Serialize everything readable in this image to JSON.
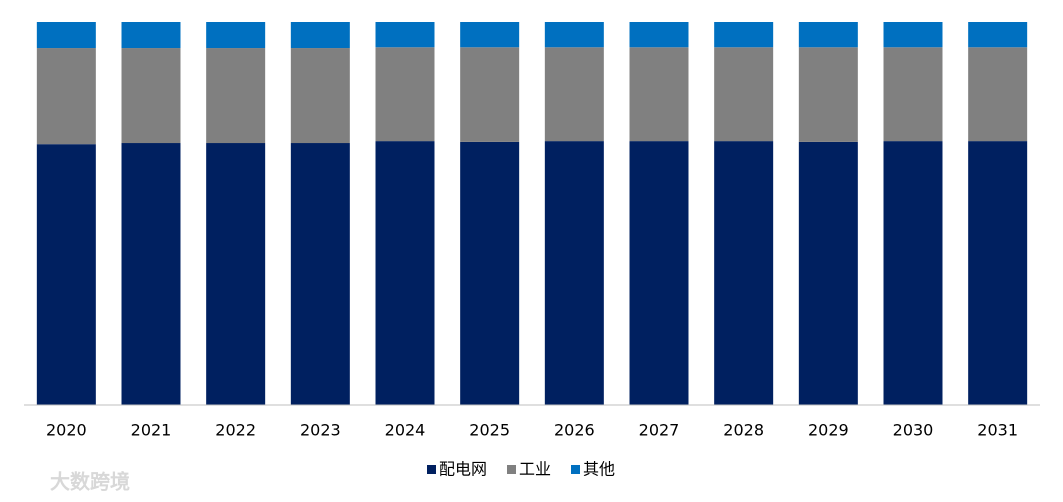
{
  "chart_data": {
    "type": "stacked-bar",
    "categories": [
      "2020",
      "2021",
      "2022",
      "2023",
      "2024",
      "2025",
      "2026",
      "2027",
      "2028",
      "2029",
      "2030",
      "2031"
    ],
    "series": [
      {
        "name": "配电网",
        "color": "#002060",
        "values": [
          68.1,
          68.4,
          68.4,
          68.4,
          68.9,
          68.7,
          68.9,
          68.9,
          68.9,
          68.7,
          68.9,
          68.9
        ]
      },
      {
        "name": "工业",
        "color": "#808080",
        "values": [
          25.1,
          24.8,
          24.8,
          24.8,
          24.5,
          24.7,
          24.5,
          24.5,
          24.5,
          24.7,
          24.5,
          24.5
        ]
      },
      {
        "name": "其他",
        "color": "#0070c0",
        "values": [
          6.8,
          6.8,
          6.8,
          6.8,
          6.6,
          6.6,
          6.6,
          6.6,
          6.6,
          6.6,
          6.6,
          6.6
        ]
      }
    ],
    "ylim": [
      0,
      100
    ],
    "legend": "bottom",
    "watermark": "大数跨境"
  }
}
